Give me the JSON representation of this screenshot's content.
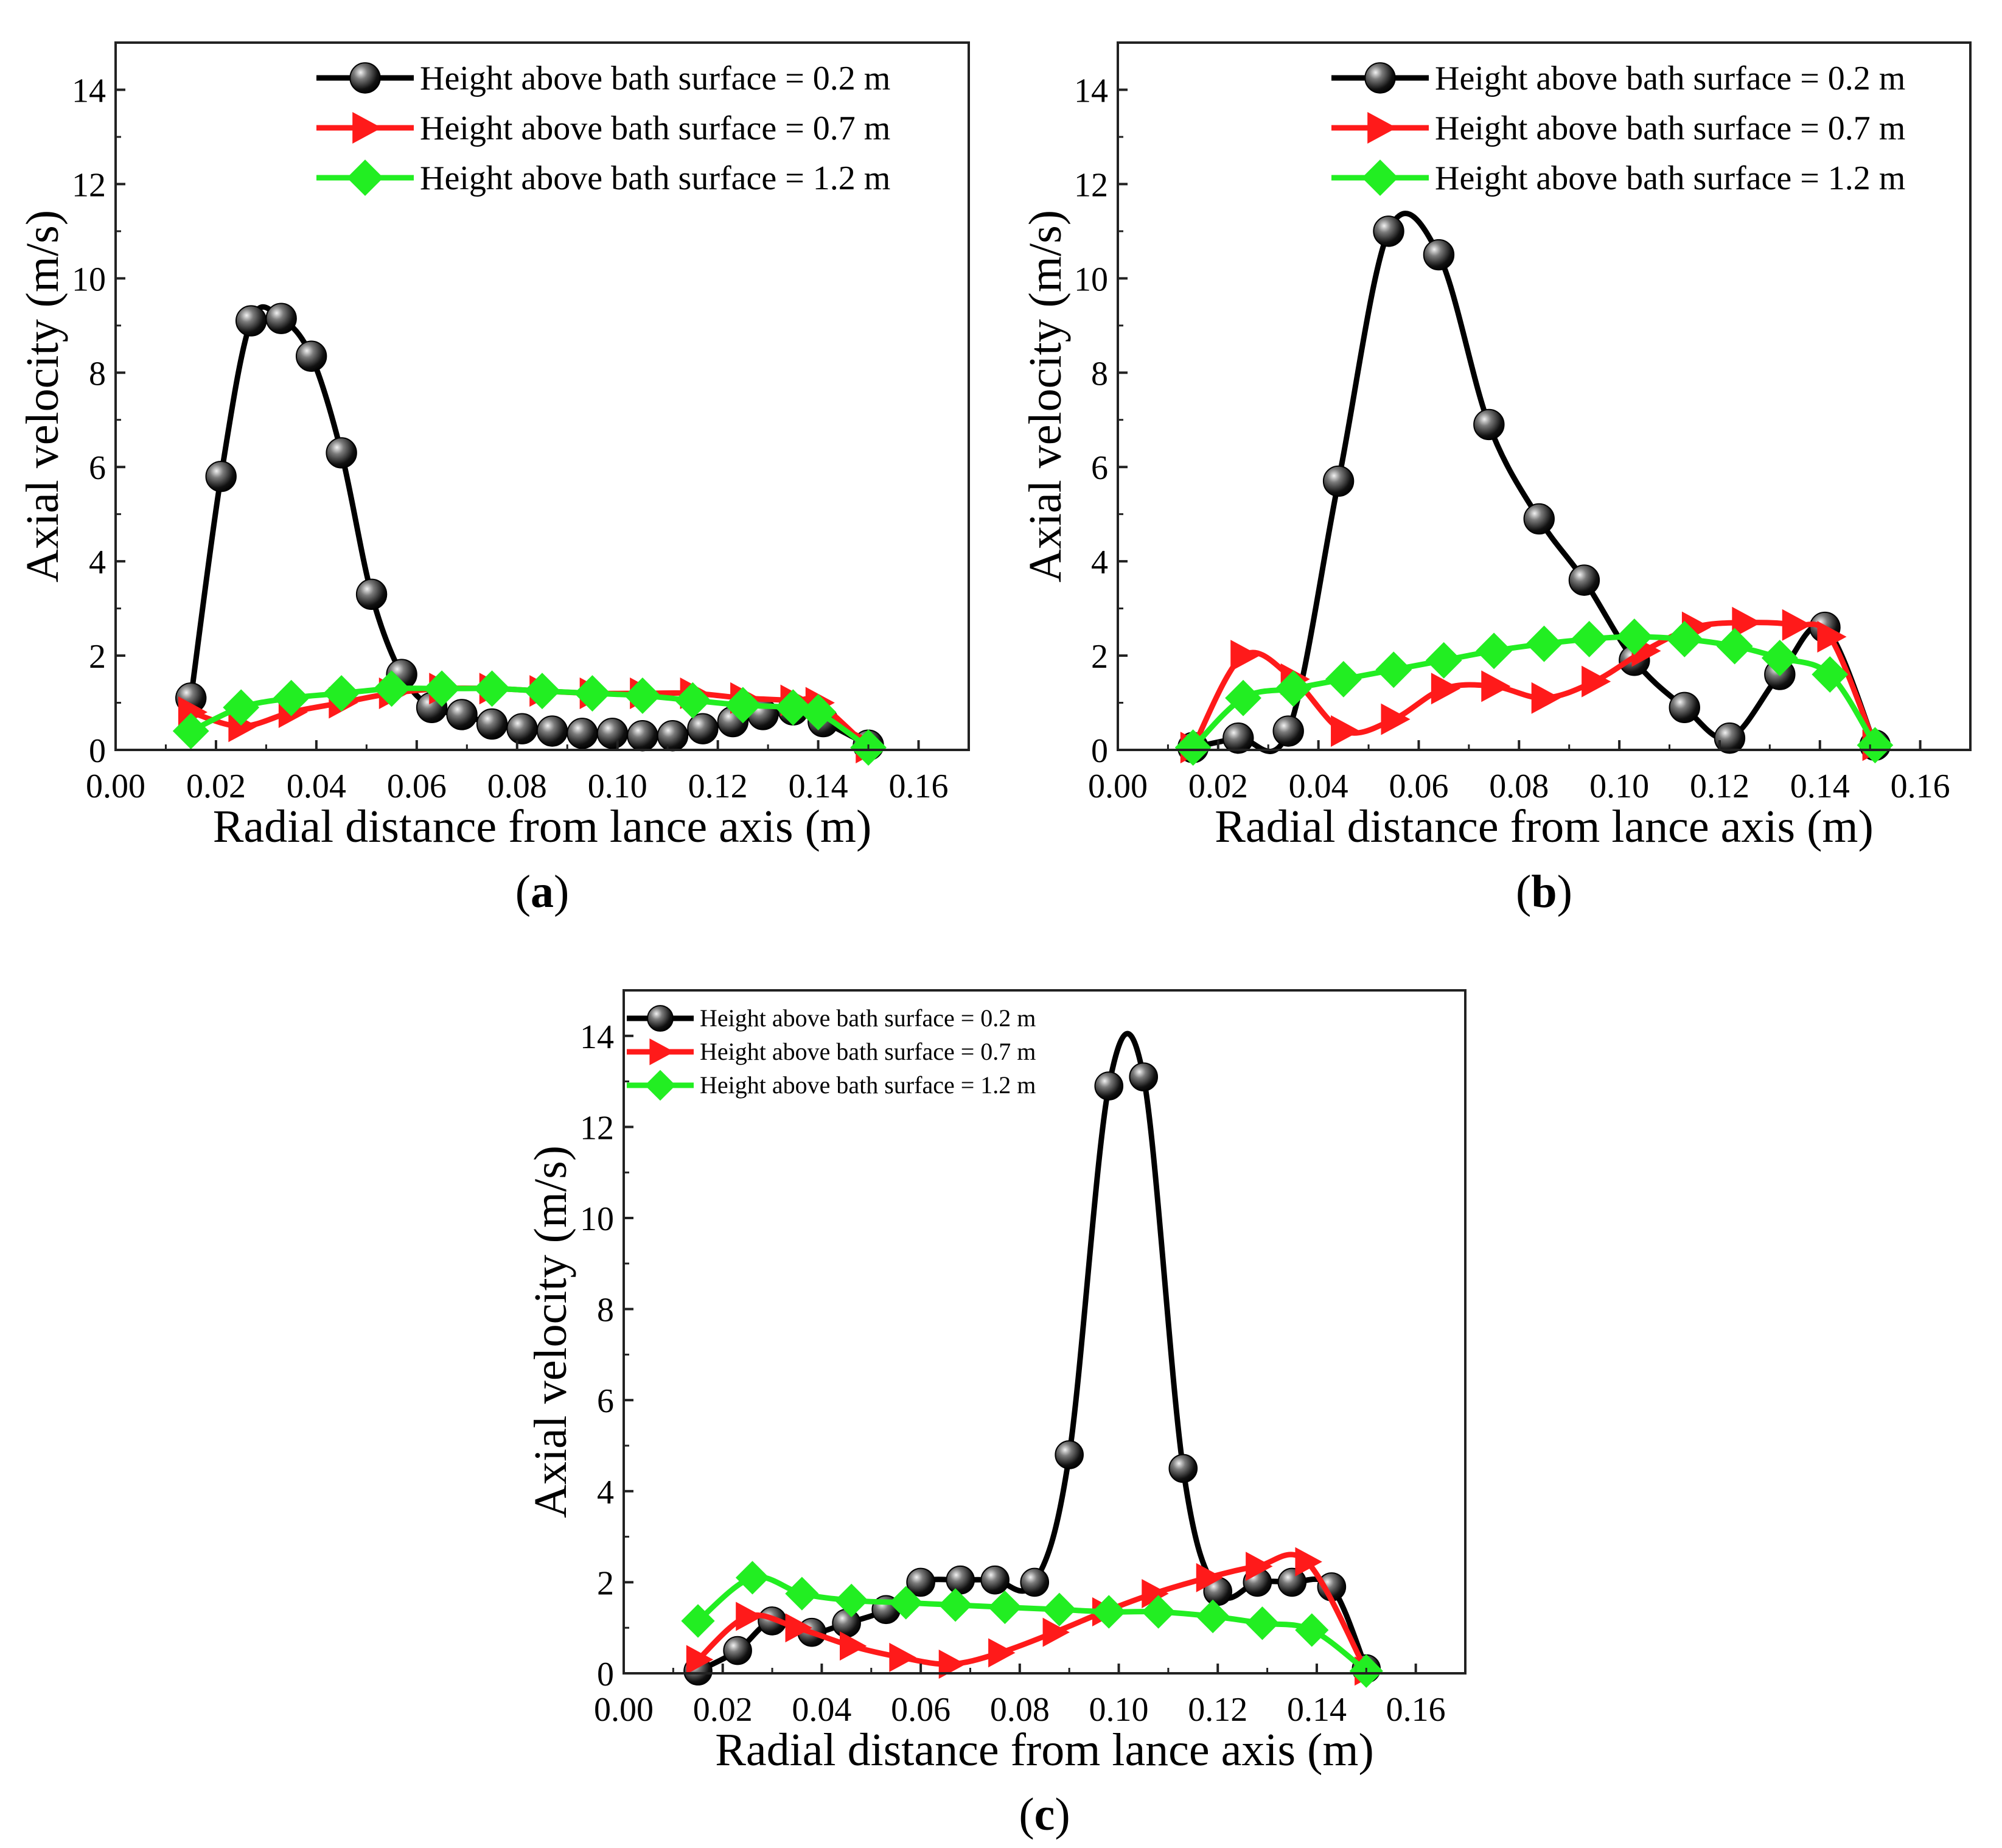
{
  "colors": {
    "series_0_2": "#000000",
    "series_0_7": "#ff1a1a",
    "series_1_2": "#22ee22",
    "axis": "#000000",
    "background": "#ffffff"
  },
  "chart_data": [
    {
      "type": "line",
      "panel": "(a)",
      "panel_letter": "a",
      "xlabel": "Radial distance from lance axis (m)",
      "ylabel": "Axial velocity (m/s)",
      "xlim": [
        0.0,
        0.17
      ],
      "ylim": [
        0,
        15
      ],
      "xticks": [
        "0.00",
        "0.02",
        "0.04",
        "0.06",
        "0.08",
        "0.10",
        "0.12",
        "0.14",
        "0.16"
      ],
      "yticks": [
        "0",
        "2",
        "4",
        "6",
        "8",
        "10",
        "12",
        "14"
      ],
      "legend_position": "top-right",
      "series": [
        {
          "name": "Height above bath surface = 0.2 m",
          "marker": "sphere",
          "color": "#000000",
          "x": [
            0.015,
            0.021,
            0.027,
            0.033,
            0.039,
            0.045,
            0.051,
            0.057,
            0.063,
            0.069,
            0.075,
            0.081,
            0.087,
            0.093,
            0.099,
            0.105,
            0.111,
            0.117,
            0.123,
            0.129,
            0.135,
            0.141,
            0.15
          ],
          "y": [
            1.1,
            5.8,
            9.1,
            9.15,
            8.35,
            6.3,
            3.3,
            1.6,
            0.9,
            0.75,
            0.55,
            0.45,
            0.4,
            0.35,
            0.35,
            0.3,
            0.3,
            0.45,
            0.6,
            0.75,
            0.85,
            0.6,
            0.1
          ]
        },
        {
          "name": "Height above bath surface = 0.7 m",
          "marker": "triangle-right",
          "color": "#ff1a1a",
          "x": [
            0.015,
            0.025,
            0.035,
            0.045,
            0.055,
            0.065,
            0.075,
            0.085,
            0.095,
            0.105,
            0.115,
            0.125,
            0.135,
            0.14,
            0.15
          ],
          "y": [
            0.8,
            0.5,
            0.8,
            1.0,
            1.2,
            1.3,
            1.3,
            1.25,
            1.2,
            1.2,
            1.2,
            1.1,
            1.05,
            1.0,
            0.05
          ]
        },
        {
          "name": "Height above bath surface = 1.2 m",
          "marker": "diamond",
          "color": "#22ee22",
          "x": [
            0.015,
            0.025,
            0.035,
            0.045,
            0.055,
            0.065,
            0.075,
            0.085,
            0.095,
            0.105,
            0.115,
            0.125,
            0.135,
            0.14,
            0.15
          ],
          "y": [
            0.4,
            0.9,
            1.1,
            1.2,
            1.3,
            1.3,
            1.3,
            1.25,
            1.2,
            1.15,
            1.05,
            0.95,
            0.9,
            0.8,
            0.05
          ]
        }
      ]
    },
    {
      "type": "line",
      "panel": "(b)",
      "panel_letter": "b",
      "xlabel": "Radial distance from lance axis (m)",
      "ylabel": "Axial velocity (m/s)",
      "xlim": [
        0.0,
        0.17
      ],
      "ylim": [
        0,
        15
      ],
      "xticks": [
        "0.00",
        "0.02",
        "0.04",
        "0.06",
        "0.08",
        "0.10",
        "0.12",
        "0.14",
        "0.16"
      ],
      "yticks": [
        "0",
        "2",
        "4",
        "6",
        "8",
        "10",
        "12",
        "14"
      ],
      "legend_position": "top-right",
      "series": [
        {
          "name": "Height above bath surface = 0.2 m",
          "marker": "sphere",
          "color": "#000000",
          "x": [
            0.015,
            0.024,
            0.034,
            0.044,
            0.054,
            0.064,
            0.074,
            0.084,
            0.093,
            0.103,
            0.113,
            0.122,
            0.132,
            0.141,
            0.151
          ],
          "y": [
            0.05,
            0.25,
            0.4,
            5.7,
            11.0,
            10.5,
            6.9,
            4.9,
            3.6,
            1.9,
            0.9,
            0.25,
            1.6,
            2.6,
            0.1
          ]
        },
        {
          "name": "Height above bath surface = 0.7 m",
          "marker": "triangle-right",
          "color": "#ff1a1a",
          "x": [
            0.015,
            0.025,
            0.035,
            0.045,
            0.055,
            0.065,
            0.075,
            0.085,
            0.095,
            0.105,
            0.115,
            0.125,
            0.135,
            0.142,
            0.151
          ],
          "y": [
            0.05,
            2.0,
            1.5,
            0.4,
            0.65,
            1.3,
            1.35,
            1.1,
            1.45,
            2.1,
            2.6,
            2.7,
            2.65,
            2.4,
            0.1
          ]
        },
        {
          "name": "Height above bath surface = 1.2 m",
          "marker": "diamond",
          "color": "#22ee22",
          "x": [
            0.015,
            0.025,
            0.035,
            0.045,
            0.055,
            0.065,
            0.075,
            0.085,
            0.094,
            0.103,
            0.113,
            0.123,
            0.132,
            0.142,
            0.151
          ],
          "y": [
            0.05,
            1.1,
            1.3,
            1.5,
            1.7,
            1.9,
            2.1,
            2.25,
            2.35,
            2.4,
            2.35,
            2.2,
            1.95,
            1.6,
            0.1
          ]
        }
      ]
    },
    {
      "type": "line",
      "panel": "(c)",
      "panel_letter": "c",
      "xlabel": "Radial distance from lance axis (m)",
      "ylabel": "Axial velocity (m/s)",
      "xlim": [
        0.0,
        0.17
      ],
      "ylim": [
        0,
        15
      ],
      "xticks": [
        "0.00",
        "0.02",
        "0.04",
        "0.06",
        "0.08",
        "0.10",
        "0.12",
        "0.14",
        "0.16"
      ],
      "yticks": [
        "0",
        "2",
        "4",
        "6",
        "8",
        "10",
        "12",
        "14"
      ],
      "legend_position": "top-left",
      "series": [
        {
          "name": "Height above bath surface = 0.2 m",
          "marker": "sphere",
          "color": "#000000",
          "x": [
            0.015,
            0.023,
            0.03,
            0.038,
            0.045,
            0.053,
            0.06,
            0.068,
            0.075,
            0.083,
            0.09,
            0.098,
            0.105,
            0.113,
            0.12,
            0.128,
            0.135,
            0.143,
            0.15
          ],
          "y": [
            0.05,
            0.5,
            1.15,
            0.9,
            1.1,
            1.4,
            2.0,
            2.05,
            2.05,
            2.0,
            4.8,
            12.9,
            13.1,
            4.5,
            1.8,
            2.0,
            2.0,
            1.9,
            0.1
          ]
        },
        {
          "name": "Height above bath surface = 0.7 m",
          "marker": "triangle-right",
          "color": "#ff1a1a",
          "x": [
            0.015,
            0.025,
            0.035,
            0.046,
            0.056,
            0.066,
            0.076,
            0.087,
            0.097,
            0.107,
            0.118,
            0.128,
            0.138,
            0.15
          ],
          "y": [
            0.3,
            1.25,
            1.0,
            0.6,
            0.35,
            0.2,
            0.45,
            0.9,
            1.35,
            1.75,
            2.1,
            2.35,
            2.45,
            0.05
          ]
        },
        {
          "name": "Height above bath surface = 1.2 m",
          "marker": "diamond",
          "color": "#22ee22",
          "x": [
            0.015,
            0.026,
            0.036,
            0.046,
            0.057,
            0.067,
            0.077,
            0.088,
            0.098,
            0.108,
            0.119,
            0.129,
            0.139,
            0.15
          ],
          "y": [
            1.15,
            2.1,
            1.75,
            1.6,
            1.55,
            1.5,
            1.45,
            1.4,
            1.35,
            1.35,
            1.25,
            1.1,
            0.95,
            0.05
          ]
        }
      ]
    }
  ]
}
